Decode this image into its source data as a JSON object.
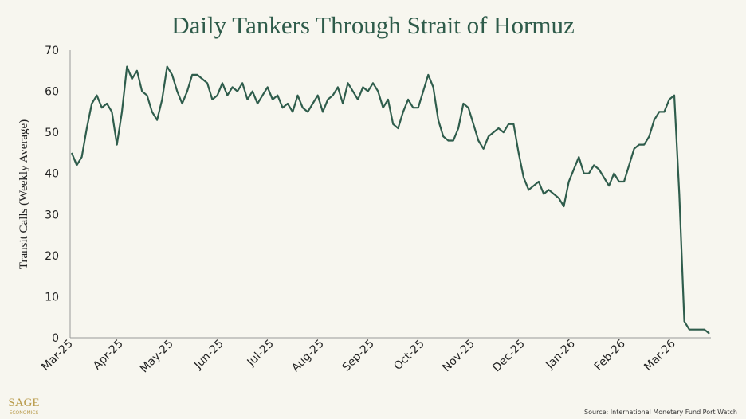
{
  "chart_data": {
    "type": "line",
    "title": "Daily Tankers Through Strait of Hormuz",
    "y_label": "Transit Calls (Weekly Average)",
    "source": "Source: International Monetary Fund Port Watch",
    "brand": "SAGE",
    "brand_sub": "ECONOMICS",
    "color": "#2f5d4c",
    "categories": [
      "Mar-25",
      null,
      null,
      null,
      null,
      null,
      null,
      null,
      null,
      null,
      "Apr-25",
      null,
      null,
      null,
      null,
      null,
      null,
      null,
      null,
      null,
      "May-25",
      null,
      null,
      null,
      null,
      null,
      null,
      null,
      null,
      null,
      "Jun-25",
      null,
      null,
      null,
      null,
      null,
      null,
      null,
      null,
      null,
      "Jul-25",
      null,
      null,
      null,
      null,
      null,
      null,
      null,
      null,
      null,
      "Aug-25",
      null,
      null,
      null,
      null,
      null,
      null,
      null,
      null,
      null,
      "Sep-25",
      null,
      null,
      null,
      null,
      null,
      null,
      null,
      null,
      null,
      "Oct-25",
      null,
      null,
      null,
      null,
      null,
      null,
      null,
      null,
      null,
      "Nov-25",
      null,
      null,
      null,
      null,
      null,
      null,
      null,
      null,
      null,
      "Dec-25",
      null,
      null,
      null,
      null,
      null,
      null,
      null,
      null,
      null,
      "Jan-26",
      null,
      null,
      null,
      null,
      null,
      null,
      null,
      null,
      null,
      "Feb-26",
      null,
      null,
      null,
      null,
      null,
      null,
      null,
      null,
      null,
      "Mar-26",
      null,
      null,
      null,
      null,
      null,
      null,
      null
    ],
    "values": [
      45,
      42,
      44,
      51,
      57,
      59,
      56,
      57,
      55,
      47,
      55,
      66,
      63,
      65,
      60,
      59,
      55,
      53,
      58,
      66,
      64,
      60,
      57,
      60,
      64,
      64,
      63,
      62,
      58,
      59,
      62,
      59,
      61,
      60,
      62,
      58,
      60,
      57,
      59,
      61,
      58,
      59,
      56,
      57,
      55,
      59,
      56,
      55,
      57,
      59,
      55,
      58,
      59,
      61,
      57,
      62,
      60,
      58,
      61,
      60,
      62,
      60,
      56,
      58,
      52,
      51,
      55,
      58,
      56,
      56,
      60,
      64,
      61,
      53,
      49,
      48,
      48,
      51,
      57,
      56,
      52,
      48,
      46,
      49,
      50,
      51,
      50,
      52,
      52,
      45,
      39,
      36,
      37,
      38,
      35,
      36,
      35,
      34,
      32,
      38,
      41,
      44,
      40,
      40,
      42,
      41,
      39,
      37,
      40,
      38,
      38,
      42,
      46,
      47,
      47,
      49,
      53,
      55,
      55,
      58,
      59,
      35,
      4,
      2,
      2,
      2,
      2,
      1
    ],
    "ylim": [
      0,
      70
    ],
    "yticks": [
      0,
      10,
      20,
      30,
      40,
      50,
      60,
      70
    ],
    "grid": false
  }
}
